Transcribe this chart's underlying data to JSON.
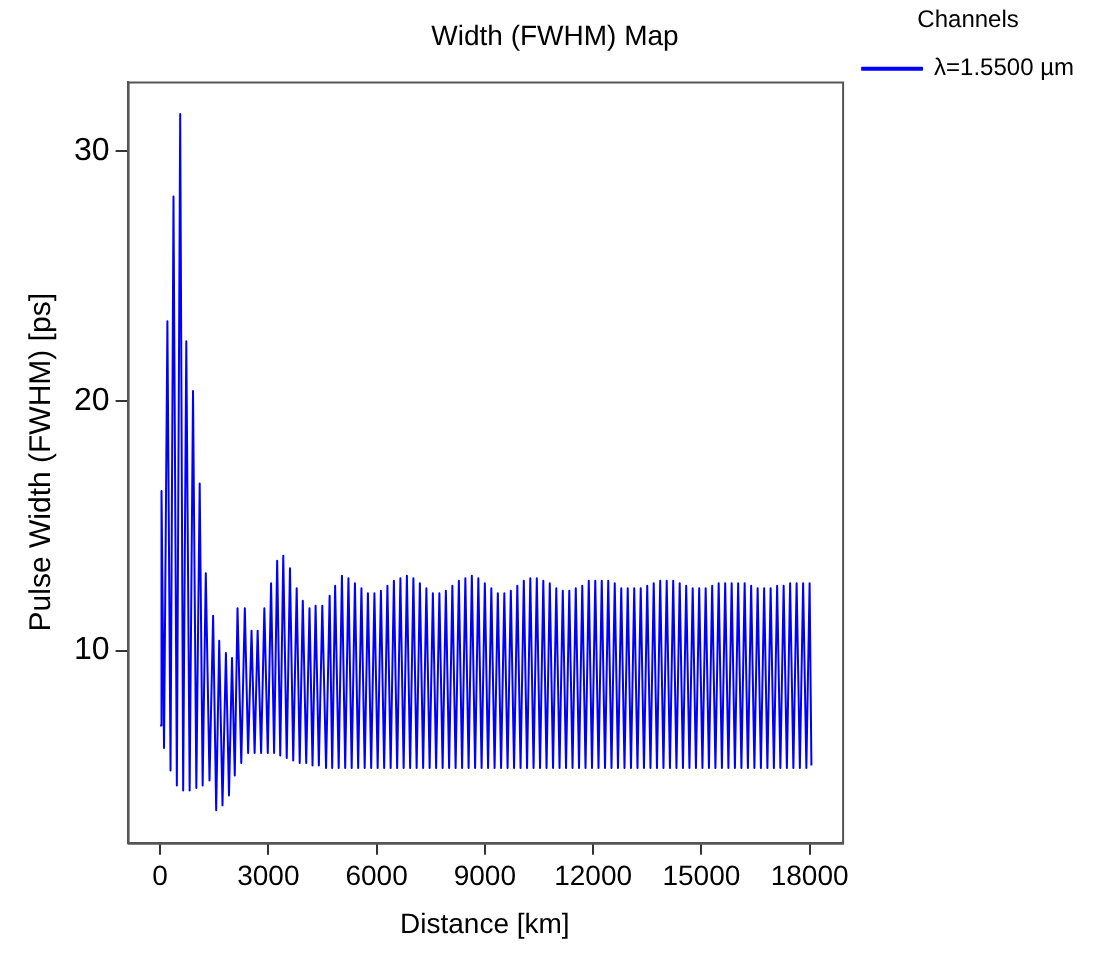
{
  "chart_data": {
    "type": "line",
    "title": "Width (FWHM) Map",
    "xlabel": "Distance [km]",
    "ylabel": "Pulse Width (FWHM) [ps]",
    "legend_title": "Channels",
    "legend": "top right",
    "grid": false,
    "marker": "none",
    "line_style": "solid",
    "xlim": [
      -900,
      18900
    ],
    "xticks": [
      0,
      3000,
      6000,
      9000,
      12000,
      15000,
      18000
    ],
    "ylim": [
      2.3,
      32.8
    ],
    "yticks": [
      10,
      20,
      30
    ],
    "series": [
      {
        "name": "λ=1.5500 µm",
        "color": "#0000ff",
        "x": [
          0,
          40,
          110,
          203,
          290,
          372,
          465,
          558,
          640,
          727,
          820,
          913,
          1005,
          1098,
          1180,
          1267,
          1370,
          1470,
          1555,
          1639,
          1730,
          1825,
          1910,
          1994,
          2070,
          2146,
          2250,
          2349,
          2440,
          2535,
          2620,
          2704,
          2800,
          2890,
          2985,
          3076,
          3160,
          3245,
          3330,
          3414,
          3510,
          3600,
          3690,
          3786,
          3870,
          3955,
          4050,
          4141,
          4225,
          4310,
          4400,
          4496,
          4600,
          4699,
          4770,
          4851,
          4950,
          5040,
          5130,
          5220,
          5310,
          5400,
          5490,
          5580,
          5670,
          5760,
          5850,
          5940,
          6030,
          6120,
          6210,
          6300,
          6390,
          6480,
          6570,
          6660,
          6750,
          6840,
          6930,
          7020,
          7110,
          7200,
          7290,
          7380,
          7470,
          7560,
          7650,
          7740,
          7830,
          7920,
          8010,
          8100,
          8190,
          8280,
          8370,
          8460,
          8550,
          8640,
          8730,
          8820,
          8910,
          9000,
          9090,
          9180,
          9270,
          9360,
          9450,
          9540,
          9630,
          9720,
          9810,
          9900,
          9990,
          10080,
          10170,
          10260,
          10350,
          10440,
          10530,
          10620,
          10710,
          10800,
          10890,
          10980,
          11070,
          11160,
          11250,
          11340,
          11430,
          11520,
          11610,
          11700,
          11790,
          11880,
          11970,
          12060,
          12150,
          12240,
          12330,
          12420,
          12510,
          12600,
          12690,
          12780,
          12870,
          12960,
          13050,
          13140,
          13230,
          13320,
          13410,
          13500,
          13590,
          13680,
          13770,
          13860,
          13950,
          14040,
          14130,
          14220,
          14310,
          14400,
          14490,
          14580,
          14670,
          14760,
          14850,
          14940,
          15030,
          15120,
          15210,
          15300,
          15390,
          15480,
          15570,
          15660,
          15750,
          15840,
          15930,
          16020,
          16110,
          16200,
          16290,
          16380,
          16470,
          16560,
          16650,
          16740,
          16830,
          16920,
          17010,
          17100,
          17190,
          17280,
          17370,
          17460,
          17550,
          17640,
          17730,
          17820,
          17910,
          18000,
          18050
        ],
        "values": [
          7.0,
          16.4,
          6.1,
          23.2,
          5.2,
          28.2,
          4.6,
          31.5,
          4.4,
          22.4,
          4.4,
          20.4,
          4.5,
          16.7,
          4.6,
          13.1,
          4.8,
          11.4,
          3.6,
          10.4,
          3.8,
          9.9,
          4.2,
          9.7,
          5.0,
          11.7,
          5.5,
          11.7,
          5.9,
          10.8,
          5.9,
          10.8,
          5.9,
          11.7,
          5.9,
          12.7,
          5.9,
          13.6,
          5.8,
          13.8,
          5.7,
          13.3,
          5.6,
          12.5,
          5.5,
          12.0,
          5.5,
          11.7,
          5.4,
          11.8,
          5.4,
          11.8,
          5.3,
          12.2,
          5.3,
          12.6,
          5.3,
          13.0,
          5.3,
          12.9,
          5.3,
          12.7,
          5.3,
          12.5,
          5.3,
          12.3,
          5.3,
          12.3,
          5.3,
          12.4,
          5.3,
          12.6,
          5.3,
          12.8,
          5.3,
          12.9,
          5.3,
          13.0,
          5.3,
          12.9,
          5.3,
          12.7,
          5.3,
          12.5,
          5.3,
          12.3,
          5.3,
          12.3,
          5.3,
          12.4,
          5.3,
          12.6,
          5.3,
          12.8,
          5.3,
          12.9,
          5.3,
          13.0,
          5.3,
          12.9,
          5.3,
          12.7,
          5.3,
          12.5,
          5.3,
          12.3,
          5.3,
          12.3,
          5.3,
          12.4,
          5.3,
          12.6,
          5.3,
          12.8,
          5.3,
          12.9,
          5.3,
          12.9,
          5.3,
          12.8,
          5.3,
          12.7,
          5.3,
          12.5,
          5.3,
          12.4,
          5.3,
          12.4,
          5.3,
          12.5,
          5.3,
          12.6,
          5.3,
          12.8,
          5.3,
          12.8,
          5.3,
          12.8,
          5.3,
          12.8,
          5.3,
          12.7,
          5.3,
          12.5,
          5.3,
          12.5,
          5.3,
          12.5,
          5.3,
          12.5,
          5.3,
          12.6,
          5.3,
          12.7,
          5.3,
          12.8,
          5.3,
          12.8,
          5.3,
          12.8,
          5.3,
          12.7,
          5.3,
          12.6,
          5.3,
          12.5,
          5.3,
          12.5,
          5.3,
          12.5,
          5.3,
          12.6,
          5.3,
          12.7,
          5.3,
          12.7,
          5.3,
          12.7,
          5.3,
          12.7,
          5.3,
          12.7,
          5.3,
          12.6,
          5.3,
          12.5,
          5.3,
          12.5,
          5.3,
          12.5,
          5.3,
          12.6,
          5.3,
          12.6,
          5.3,
          12.7,
          5.3,
          12.7,
          5.3,
          12.7,
          5.3,
          12.7,
          5.4
        ]
      }
    ]
  }
}
